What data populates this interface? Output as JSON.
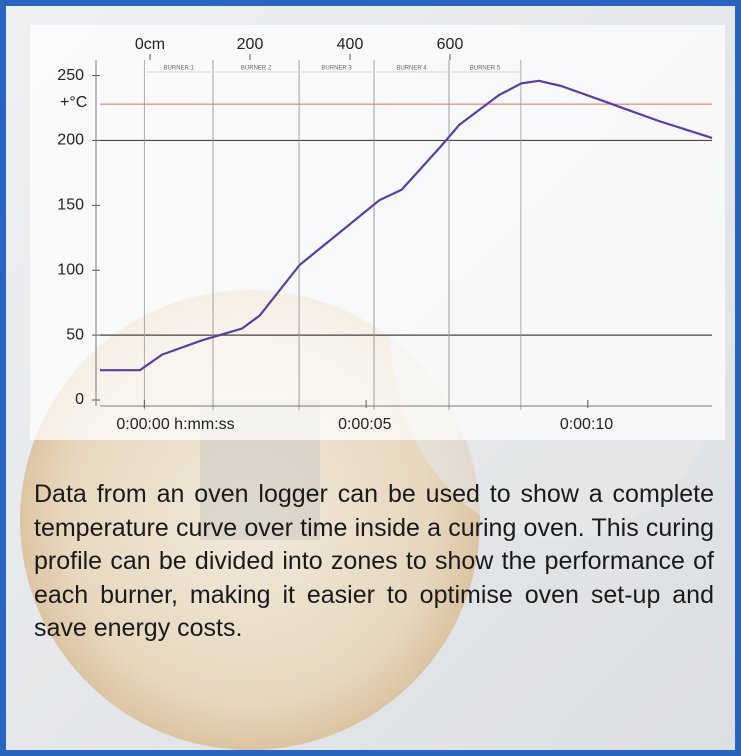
{
  "chart_data": {
    "type": "line",
    "ylabel": "+°C",
    "x": [
      -1,
      -0.1,
      0.4,
      1.3,
      2.2,
      2.6,
      3.5,
      4.4,
      5.3,
      5.8,
      6.2,
      6.7,
      7.1,
      8.0,
      8.5,
      8.9,
      9.4,
      10.3,
      11.6,
      12.8
    ],
    "series": [
      {
        "color": "#5a3fa0",
        "values": [
          23,
          23,
          35,
          46,
          55,
          65,
          104,
          129,
          154,
          162,
          177,
          196,
          212,
          235,
          244,
          246,
          242,
          231,
          215,
          202
        ]
      }
    ],
    "xlim": [
      -1,
      12.8
    ],
    "xticks": [
      {
        "value": 0,
        "label": "0:00:00 h:mm:ss"
      },
      {
        "value": 5,
        "label": "0:00:05"
      },
      {
        "value": 10,
        "label": "0:00:10"
      }
    ],
    "x2lim": [
      -100,
      1124
    ],
    "x2ticks": [
      {
        "value": 0,
        "label": "0cm"
      },
      200,
      400,
      600
    ],
    "ylim": [
      0,
      262
    ],
    "yticks": [
      0,
      50,
      100,
      150,
      200,
      250
    ],
    "highlight_lines": [
      50,
      200
    ],
    "reference_line": {
      "value": 228,
      "color": "#e07050"
    },
    "zones": [
      {
        "label": "BURNER 1",
        "start": 0,
        "end": 1.55
      },
      {
        "label": "BURNER 2",
        "start": 1.55,
        "end": 3.49
      },
      {
        "label": "BURNER 3",
        "start": 3.49,
        "end": 5.18
      },
      {
        "label": "BURNER 4",
        "start": 5.18,
        "end": 6.87
      },
      {
        "label": "BURNER 5",
        "start": 6.87,
        "end": 8.49
      }
    ]
  },
  "caption": "Data from an oven logger can be used to show a complete  temperature curve over time inside a curing oven. This curing profile can be divided into zones to show the performance of each burner, making it easier to optimise oven set-up and save energy costs."
}
